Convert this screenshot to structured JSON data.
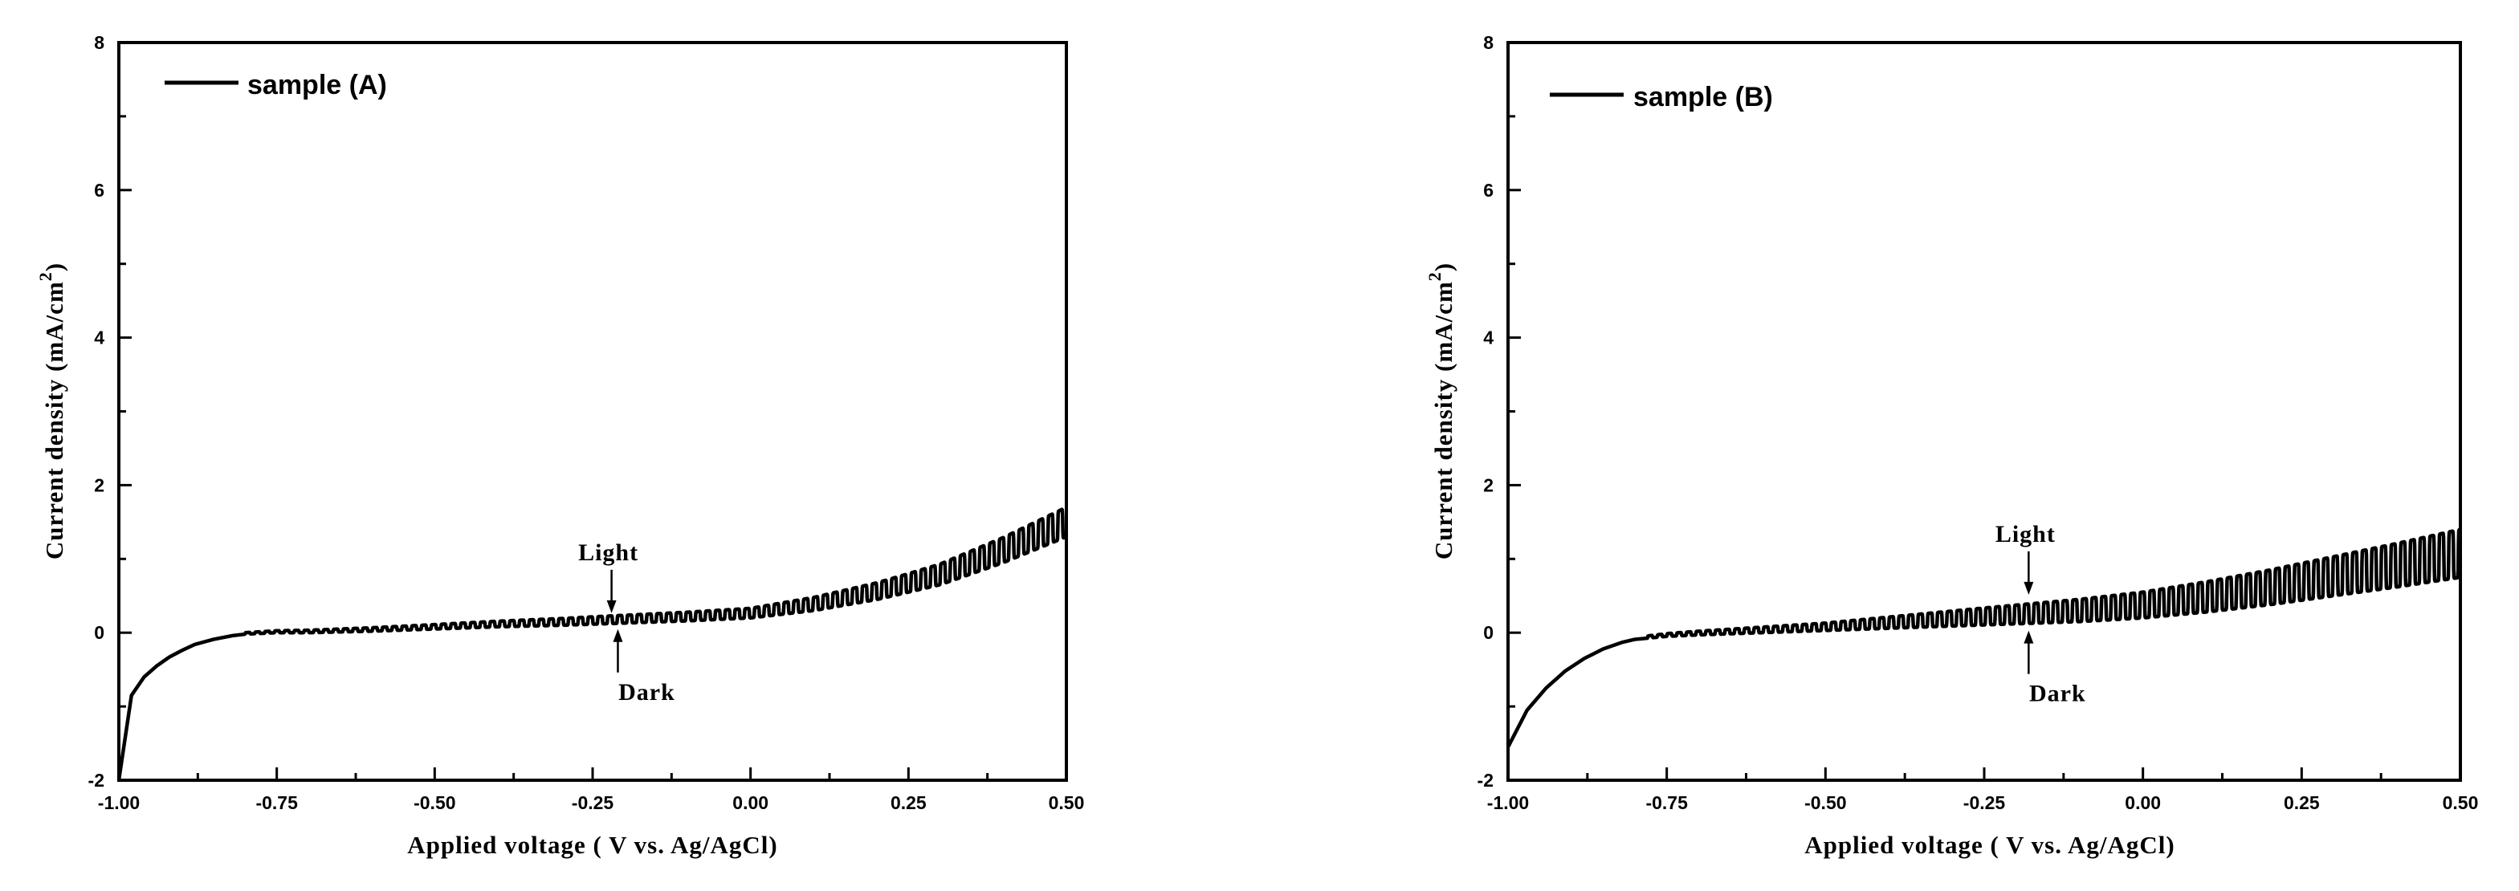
{
  "chart_data": [
    {
      "type": "line",
      "xlabel": "Applied voltage ( V vs. Ag/AgCl)",
      "ylabel_main": "Current density (mA/cm",
      "ylabel_sup": "2",
      "ylabel_close": ")",
      "xlim": [
        -1.0,
        0.5
      ],
      "ylim": [
        -2,
        8
      ],
      "x_ticks": [
        -1.0,
        -0.75,
        -0.5,
        -0.25,
        0.0,
        0.25,
        0.5
      ],
      "x_tick_labels": [
        "-1.00",
        "-0.75",
        "-0.50",
        "-0.25",
        "0.00",
        "0.25",
        "0.50"
      ],
      "y_ticks": [
        -2,
        0,
        2,
        4,
        6,
        8
      ],
      "y_tick_labels": [
        "-2",
        "0",
        "2",
        "4",
        "6",
        "8"
      ],
      "legend": "top-left",
      "series": [
        {
          "name": "sample (A)",
          "baseline": {
            "x": [
              -1.0,
              -0.98,
              -0.96,
              -0.94,
              -0.92,
              -0.9,
              -0.88,
              -0.85,
              -0.82,
              -0.8,
              -0.75,
              -0.7,
              -0.6,
              -0.5,
              -0.4,
              -0.3,
              -0.2,
              -0.1,
              0.0,
              0.1,
              0.2,
              0.3,
              0.4,
              0.5
            ],
            "y": [
              -2.0,
              -0.85,
              -0.6,
              -0.45,
              -0.33,
              -0.24,
              -0.16,
              -0.09,
              -0.04,
              -0.02,
              0.0,
              0.0,
              0.02,
              0.05,
              0.08,
              0.1,
              0.13,
              0.16,
              0.2,
              0.3,
              0.45,
              0.65,
              0.95,
              1.3
            ]
          },
          "chopped_light_dark": {
            "x_start": -0.8,
            "cycle_width_V": 0.0155,
            "photocurrent_amplitude": {
              "x": [
                -0.8,
                -0.5,
                -0.25,
                0.0,
                0.25,
                0.5
              ],
              "y": [
                0.02,
                0.06,
                0.1,
                0.13,
                0.25,
                0.4
              ]
            }
          }
        }
      ],
      "annotations": [
        {
          "text": "Light",
          "x": -0.22,
          "y": 0.2,
          "arrow": "down"
        },
        {
          "text": "Dark",
          "x": -0.21,
          "y": 0.07,
          "arrow": "up"
        }
      ]
    },
    {
      "type": "line",
      "xlabel": "Applied voltage ( V vs. Ag/AgCl)",
      "ylabel_main": "Current density (mA/cm",
      "ylabel_sup": "2",
      "ylabel_close": ")",
      "xlim": [
        -1.0,
        0.5
      ],
      "ylim": [
        -2,
        8
      ],
      "x_ticks": [
        -1.0,
        -0.75,
        -0.5,
        -0.25,
        0.0,
        0.25,
        0.5
      ],
      "x_tick_labels": [
        "-1.00",
        "-0.75",
        "-0.50",
        "-0.25",
        "0.00",
        "0.25",
        "0.50"
      ],
      "y_ticks": [
        -2,
        0,
        2,
        4,
        6,
        8
      ],
      "y_tick_labels": [
        "-2",
        "0",
        "2",
        "4",
        "6",
        "8"
      ],
      "legend": "top-left",
      "series": [
        {
          "name": "sample (B)",
          "baseline": {
            "x": [
              -1.0,
              -0.97,
              -0.94,
              -0.91,
              -0.88,
              -0.85,
              -0.82,
              -0.8,
              -0.75,
              -0.7,
              -0.6,
              -0.5,
              -0.4,
              -0.3,
              -0.2,
              -0.1,
              0.0,
              0.1,
              0.2,
              0.3,
              0.4,
              0.5
            ],
            "y": [
              -1.55,
              -1.05,
              -0.75,
              -0.52,
              -0.35,
              -0.22,
              -0.13,
              -0.09,
              -0.05,
              -0.03,
              0.0,
              0.03,
              0.06,
              0.09,
              0.12,
              0.15,
              0.2,
              0.28,
              0.38,
              0.5,
              0.62,
              0.75
            ]
          },
          "chopped_light_dark": {
            "x_start": -0.78,
            "cycle_width_V": 0.0152,
            "photocurrent_amplitude": {
              "x": [
                -0.78,
                -0.5,
                -0.25,
                0.0,
                0.25,
                0.5
              ],
              "y": [
                0.03,
                0.1,
                0.23,
                0.35,
                0.5,
                0.65
              ]
            }
          }
        }
      ],
      "annotations": [
        {
          "text": "Light",
          "x": -0.18,
          "y": 0.45,
          "arrow": "down"
        },
        {
          "text": "Dark",
          "x": -0.18,
          "y": 0.05,
          "arrow": "up"
        }
      ]
    }
  ]
}
